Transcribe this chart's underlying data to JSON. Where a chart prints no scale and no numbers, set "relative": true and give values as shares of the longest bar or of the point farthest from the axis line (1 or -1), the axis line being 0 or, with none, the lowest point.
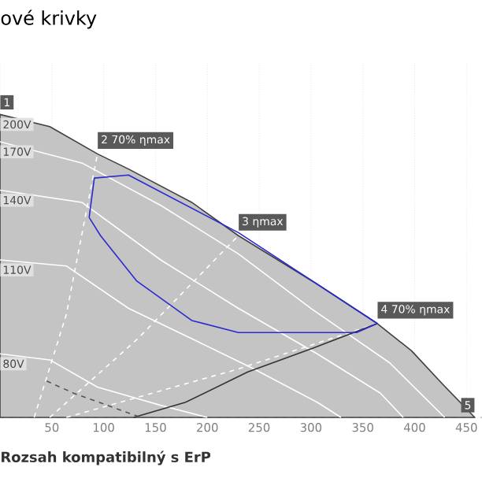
{
  "chart_data": {
    "type": "line",
    "title": "ové krivky",
    "relative": true,
    "xlim": [
      0,
      465
    ],
    "xticks": [
      {
        "value": 0,
        "label": null
      },
      50,
      100,
      150,
      200,
      250,
      300,
      350,
      400,
      450
    ],
    "tick_labels": "x",
    "grid": "x",
    "series": [
      {
        "name": "200V",
        "type": "area",
        "color": "#c4c4c4",
        "x": [
          0,
          48,
          94,
          124,
          185,
          230,
          306,
          364,
          397,
          427,
          458
        ],
        "values": [
          1.0,
          0.96,
          0.87,
          0.82,
          0.71,
          0.6,
          0.44,
          0.31,
          0.22,
          0.11,
          0
        ]
      },
      {
        "name": "170V",
        "color": "#ffffff",
        "x": [
          0,
          79,
          155,
          230,
          300,
          376,
          429
        ],
        "values": [
          0.91,
          0.84,
          0.7,
          0.54,
          0.36,
          0.18,
          0
        ]
      },
      {
        "name": "140V",
        "color": "#ffffff",
        "x": [
          0,
          79,
          155,
          230,
          306,
          367,
          389
        ],
        "values": [
          0.75,
          0.71,
          0.52,
          0.36,
          0.21,
          0.08,
          0
        ]
      },
      {
        "name": "110V",
        "color": "#ffffff",
        "x": [
          0,
          64,
          124,
          185,
          245,
          306,
          329
        ],
        "values": [
          0.52,
          0.5,
          0.36,
          0.26,
          0.16,
          0.05,
          0
        ]
      },
      {
        "name": "80V",
        "color": "#ffffff",
        "x": [
          0,
          48,
          94,
          155,
          200
        ],
        "values": [
          0.21,
          0.19,
          0.1,
          0.04,
          0
        ]
      },
      {
        "color": "#ffffff",
        "line_style": "dashed",
        "x": [
          33,
          64,
          94
        ],
        "values": [
          0,
          0.34,
          0.87
        ]
      },
      {
        "color": "#ffffff",
        "line_style": "dashed",
        "x": [
          48,
          133,
          230
        ],
        "values": [
          0,
          0.26,
          0.6
        ]
      },
      {
        "color": "#ffffff",
        "line_style": "dashed",
        "x": [
          64,
          230,
          364
        ],
        "values": [
          0,
          0.16,
          0.31
        ]
      },
      {
        "color": "#333333",
        "x": [
          129,
          179,
          239,
          303,
          364
        ],
        "values": [
          0,
          0.05,
          0.15,
          0.23,
          0.31
        ]
      },
      {
        "color": "#555555",
        "line_style": "dashed",
        "x": [
          45,
          71,
          136
        ],
        "values": [
          0.12,
          0.08,
          0
        ]
      },
      {
        "color": "#2a2ad0",
        "x": [
          86,
          91,
          124,
          230,
          364
        ],
        "values": [
          0.66,
          0.79,
          0.8,
          0.61,
          0.31
        ]
      },
      {
        "color": "#2a2ad0",
        "x": [
          86,
          97,
          132,
          185,
          230,
          344,
          364
        ],
        "values": [
          0.66,
          0.6,
          0.45,
          0.32,
          0.28,
          0.28,
          0.31
        ]
      }
    ],
    "annotations": [
      {
        "text": "1",
        "x": 0,
        "y": 1.0
      },
      {
        "text": "2 70% ηmax",
        "x": 94,
        "y": 0.87
      },
      {
        "text": "3 ηmax",
        "x": 230,
        "y": 0.6
      },
      {
        "text": "4 70% ηmax",
        "x": 364,
        "y": 0.31
      },
      {
        "text": "5",
        "x": 458,
        "y": 0
      },
      "Rozsah kompatibilný s ErP"
    ]
  }
}
